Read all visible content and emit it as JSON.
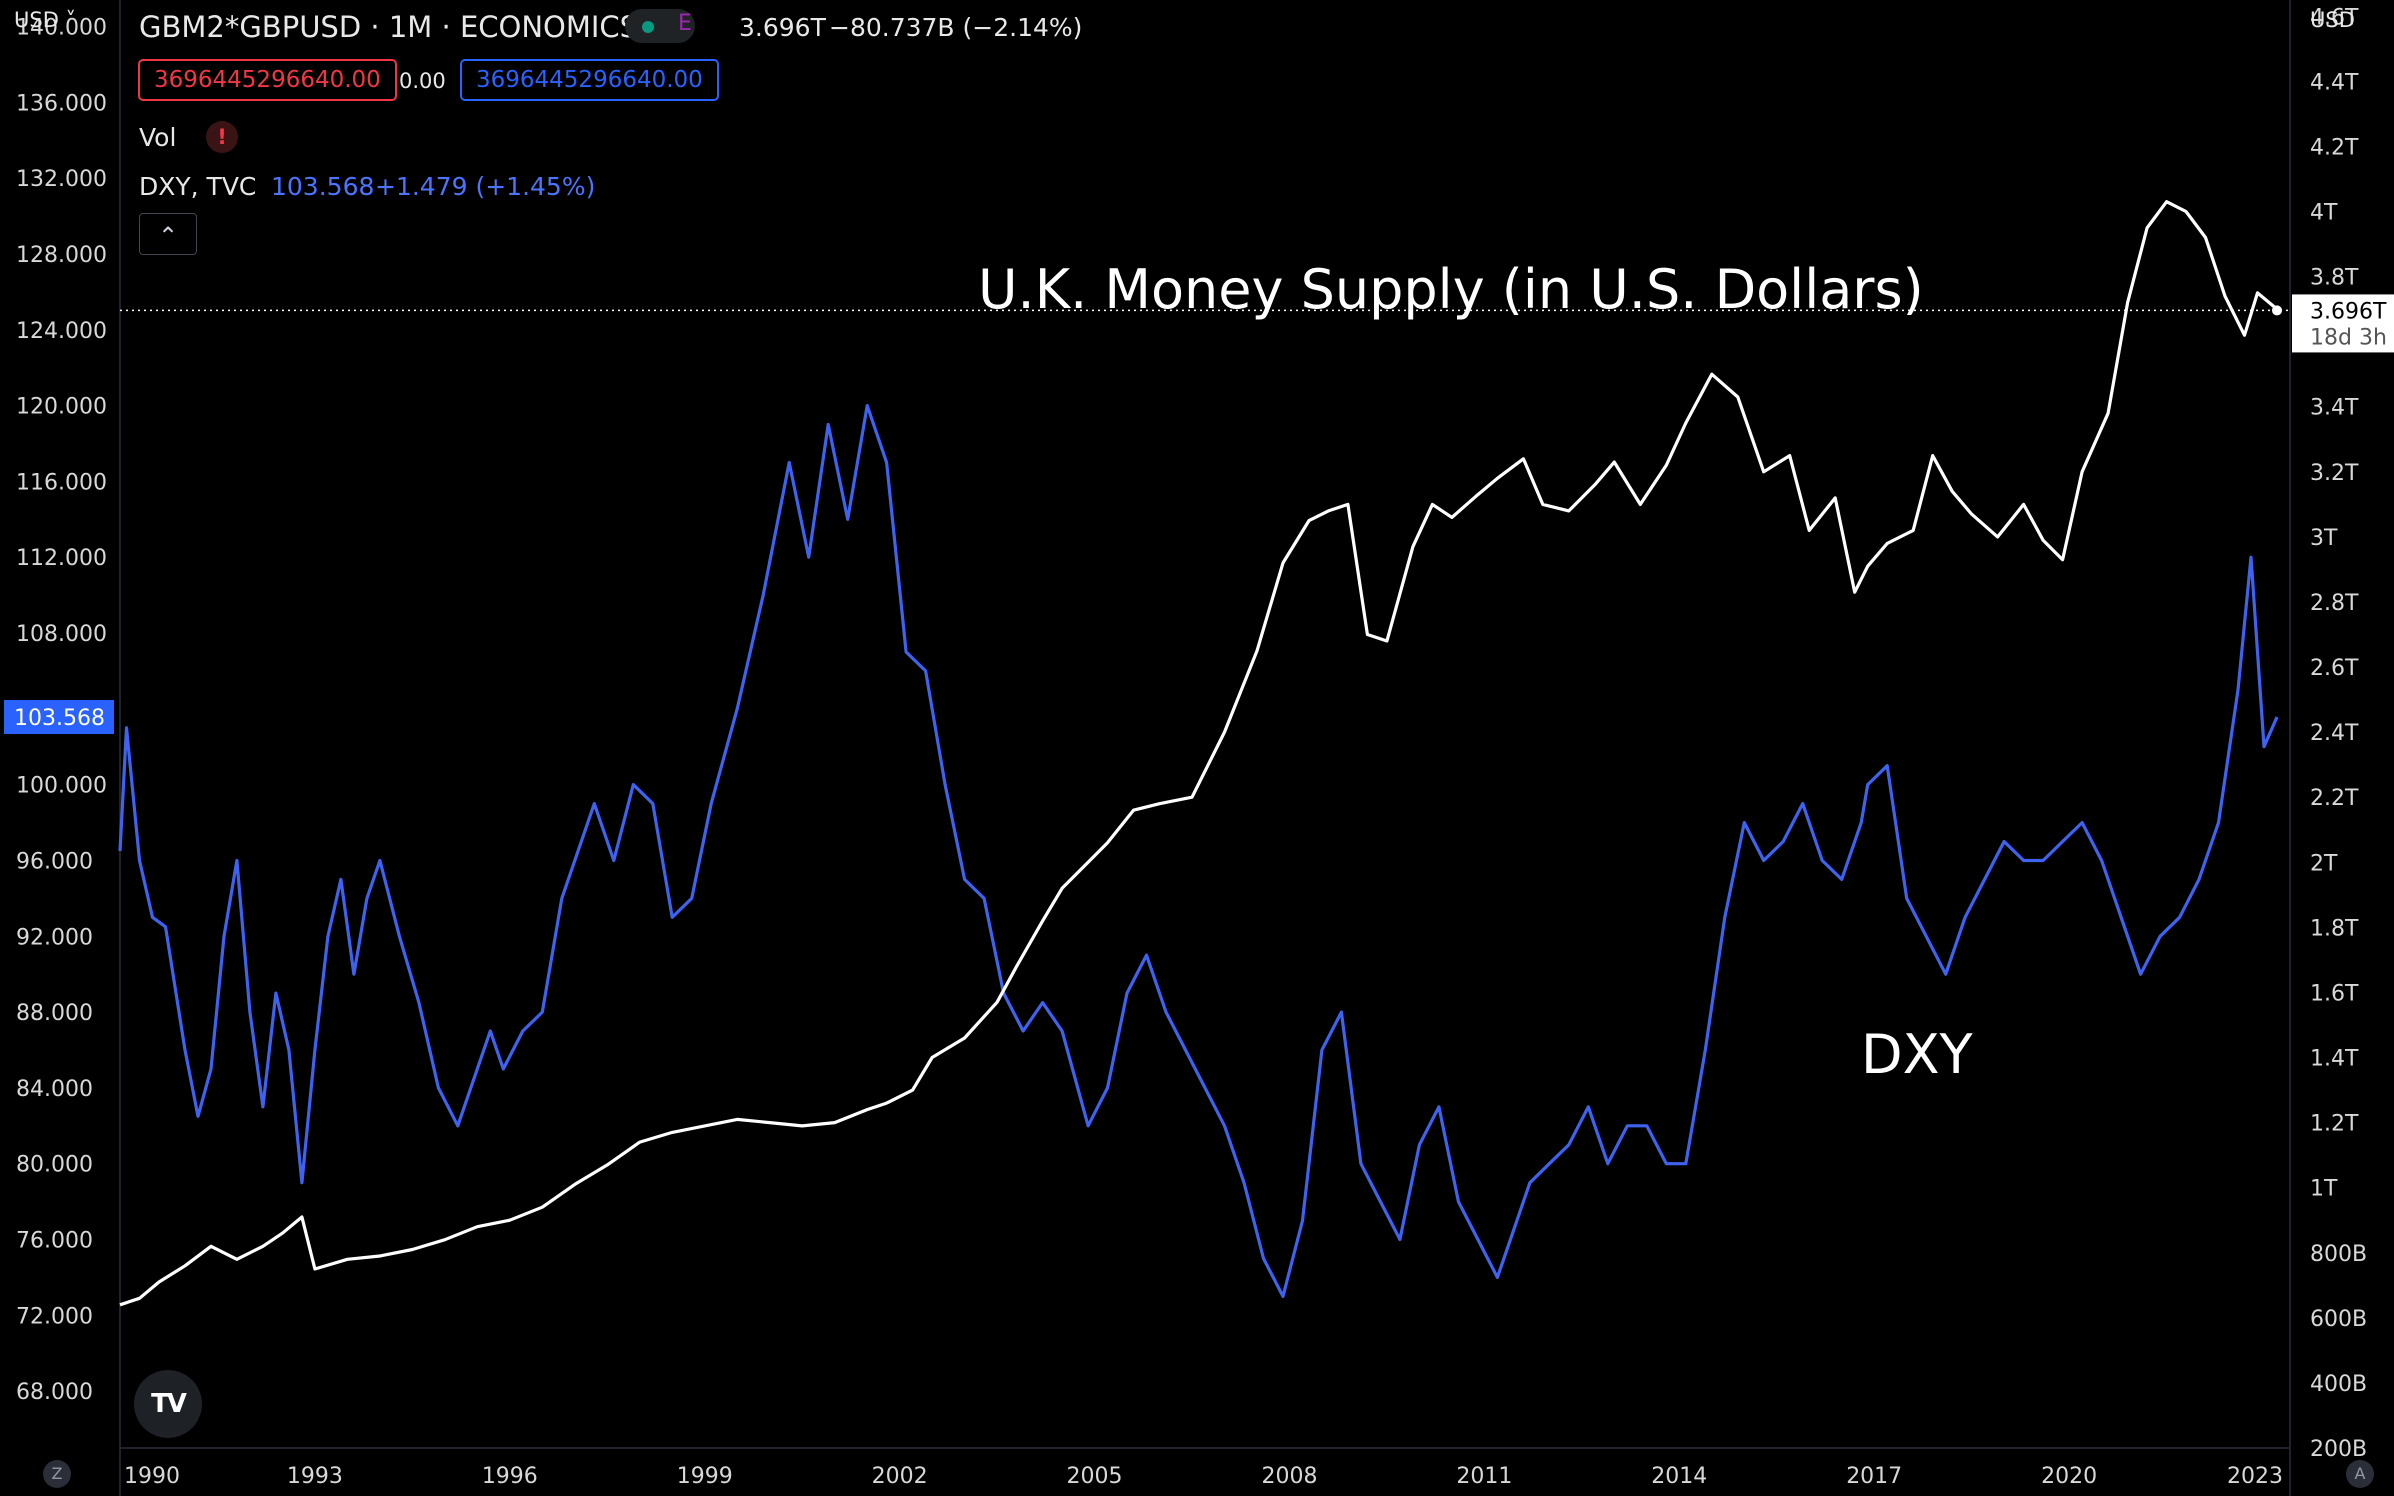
{
  "header": {
    "left_currency": "USD ˅",
    "symbol": "GBM2*GBPUSD · 1M · ECONOMICS",
    "status_e": "E",
    "last_value": "3.696T",
    "change": "−80.737B (−2.14%)",
    "input_left": "3696445296640.00",
    "input_mid": "0.00",
    "input_right": "3696445296640.00",
    "vol_label": "Vol",
    "vol_warning": "!",
    "dxy_label": "DXY, TVC",
    "dxy_value": "103.568",
    "dxy_change": "+1.479 (+1.45%)",
    "collapse_glyph": "⌃",
    "right_currency": "USD",
    "logo_text": "TV",
    "z_badge": "Z",
    "a_badge": "A"
  },
  "colors": {
    "background": "#000000",
    "m2_line": "#ffffff",
    "dxy_line": "#3d63f0",
    "up_red": "#f23645",
    "blue": "#2962ff"
  },
  "chart_data": {
    "type": "line",
    "annotations": [
      "U.K. Money Supply (in U.S. Dollars)",
      "DXY"
    ],
    "x_ticks": [
      "1990",
      "1993",
      "1996",
      "1999",
      "2002",
      "2005",
      "2008",
      "2011",
      "2014",
      "2017",
      "2020",
      "2023"
    ],
    "x_range": [
      1990.0,
      2023.4
    ],
    "left_axis": {
      "ticks": [
        "140.000",
        "136.000",
        "132.000",
        "128.000",
        "124.000",
        "120.000",
        "116.000",
        "112.000",
        "108.000",
        "104.000",
        "100.000",
        "96.000",
        "92.000",
        "88.000",
        "84.000",
        "80.000",
        "76.000",
        "72.000",
        "68.000"
      ],
      "tick_values": [
        140,
        136,
        132,
        128,
        124,
        120,
        116,
        112,
        108,
        104,
        100,
        96,
        92,
        88,
        84,
        80,
        76,
        72,
        68
      ],
      "range": [
        65.0,
        141.4
      ],
      "current_label": "103.568",
      "current_value": 103.568
    },
    "right_axis": {
      "ticks": [
        "4.6T",
        "4.4T",
        "4.2T",
        "4T",
        "3.8T",
        "3.6T",
        "3.4T",
        "3.2T",
        "3T",
        "2.8T",
        "2.6T",
        "2.4T",
        "2.2T",
        "2T",
        "1.8T",
        "1.6T",
        "1.4T",
        "1.2T",
        "1T",
        "800B",
        "600B",
        "400B",
        "200B"
      ],
      "tick_values": [
        4.6,
        4.4,
        4.2,
        4.0,
        3.8,
        3.6,
        3.4,
        3.2,
        3.0,
        2.8,
        2.6,
        2.4,
        2.2,
        2.0,
        1.8,
        1.6,
        1.4,
        1.2,
        1.0,
        0.8,
        0.6,
        0.4,
        0.2
      ],
      "range": [
        0.2,
        4.65
      ],
      "current_label": "3.696T",
      "countdown": "18d 3h",
      "current_value": 3.696
    },
    "series": [
      {
        "name": "UK M2 in USD (GBM2*GBPUSD)",
        "axis": "right",
        "x": [
          1990.0,
          1990.3,
          1990.6,
          1991.0,
          1991.4,
          1991.8,
          1992.2,
          1992.5,
          1992.8,
          1993.0,
          1993.5,
          1994.0,
          1994.5,
          1995.0,
          1995.5,
          1996.0,
          1996.5,
          1997.0,
          1997.5,
          1998.0,
          1998.5,
          1999.0,
          1999.5,
          2000.0,
          2000.5,
          2001.0,
          2001.5,
          2001.8,
          2002.2,
          2002.5,
          2003.0,
          2003.5,
          2003.8,
          2004.2,
          2004.5,
          2004.9,
          2005.2,
          2005.6,
          2006.0,
          2006.5,
          2007.0,
          2007.5,
          2007.9,
          2008.3,
          2008.6,
          2008.9,
          2009.2,
          2009.5,
          2009.9,
          2010.2,
          2010.5,
          2010.9,
          2011.2,
          2011.6,
          2011.9,
          2012.3,
          2012.7,
          2013.0,
          2013.4,
          2013.8,
          2014.1,
          2014.5,
          2014.9,
          2015.3,
          2015.7,
          2016.0,
          2016.4,
          2016.7,
          2016.9,
          2017.2,
          2017.6,
          2017.9,
          2018.2,
          2018.5,
          2018.9,
          2019.3,
          2019.6,
          2019.9,
          2020.2,
          2020.6,
          2020.9,
          2021.2,
          2021.5,
          2021.8,
          2022.1,
          2022.4,
          2022.7,
          2022.9,
          2023.2
        ],
        "values": [
          0.64,
          0.66,
          0.71,
          0.76,
          0.82,
          0.78,
          0.82,
          0.86,
          0.91,
          0.75,
          0.78,
          0.79,
          0.81,
          0.84,
          0.88,
          0.9,
          0.94,
          1.01,
          1.07,
          1.14,
          1.17,
          1.19,
          1.21,
          1.2,
          1.19,
          1.2,
          1.24,
          1.26,
          1.3,
          1.4,
          1.46,
          1.57,
          1.68,
          1.82,
          1.92,
          2.0,
          2.06,
          2.16,
          2.18,
          2.2,
          2.4,
          2.65,
          2.92,
          3.05,
          3.08,
          3.1,
          2.7,
          2.68,
          2.97,
          3.1,
          3.06,
          3.13,
          3.18,
          3.24,
          3.1,
          3.08,
          3.16,
          3.23,
          3.1,
          3.22,
          3.35,
          3.5,
          3.43,
          3.2,
          3.25,
          3.02,
          3.12,
          2.83,
          2.91,
          2.98,
          3.02,
          3.25,
          3.14,
          3.07,
          3.0,
          3.1,
          2.99,
          2.93,
          3.2,
          3.38,
          3.72,
          3.95,
          4.03,
          4.0,
          3.92,
          3.74,
          3.62,
          3.75,
          3.7
        ]
      },
      {
        "name": "DXY, TVC",
        "axis": "left",
        "x": [
          1990.0,
          1990.1,
          1990.3,
          1990.5,
          1990.7,
          1991.0,
          1991.2,
          1991.4,
          1991.6,
          1991.8,
          1992.0,
          1992.2,
          1992.4,
          1992.6,
          1992.8,
          1993.0,
          1993.2,
          1993.4,
          1993.6,
          1993.8,
          1994.0,
          1994.3,
          1994.6,
          1994.9,
          1995.2,
          1995.4,
          1995.7,
          1995.9,
          1996.2,
          1996.5,
          1996.8,
          1997.0,
          1997.3,
          1997.6,
          1997.9,
          1998.2,
          1998.5,
          1998.8,
          1999.1,
          1999.5,
          1999.9,
          2000.3,
          2000.6,
          2000.9,
          2001.2,
          2001.5,
          2001.8,
          2002.1,
          2002.4,
          2002.7,
          2003.0,
          2003.3,
          2003.6,
          2003.9,
          2004.2,
          2004.5,
          2004.9,
          2005.2,
          2005.5,
          2005.8,
          2006.1,
          2006.4,
          2006.7,
          2007.0,
          2007.3,
          2007.6,
          2007.9,
          2008.2,
          2008.5,
          2008.8,
          2009.1,
          2009.4,
          2009.7,
          2010.0,
          2010.3,
          2010.6,
          2010.9,
          2011.2,
          2011.5,
          2011.7,
          2012.0,
          2012.3,
          2012.6,
          2012.9,
          2013.2,
          2013.5,
          2013.8,
          2014.1,
          2014.4,
          2014.7,
          2015.0,
          2015.3,
          2015.6,
          2015.9,
          2016.2,
          2016.5,
          2016.8,
          2016.9,
          2017.2,
          2017.5,
          2017.8,
          2018.1,
          2018.4,
          2018.7,
          2019.0,
          2019.3,
          2019.6,
          2019.9,
          2020.2,
          2020.5,
          2020.8,
          2021.1,
          2021.4,
          2021.7,
          2022.0,
          2022.3,
          2022.6,
          2022.8,
          2023.0,
          2023.2
        ],
        "values": [
          96.5,
          103.0,
          96.0,
          93.0,
          92.5,
          86.0,
          82.5,
          85.0,
          92.0,
          96.0,
          88.0,
          83.0,
          89.0,
          86.0,
          79.0,
          86.0,
          92.0,
          95.0,
          90.0,
          94.0,
          96.0,
          92.0,
          88.5,
          84.0,
          82.0,
          84.0,
          87.0,
          85.0,
          87.0,
          88.0,
          94.0,
          96.0,
          99.0,
          96.0,
          100.0,
          99.0,
          93.0,
          94.0,
          99.0,
          104.0,
          110.0,
          117.0,
          112.0,
          119.0,
          114.0,
          120.0,
          117.0,
          107.0,
          106.0,
          100.0,
          95.0,
          94.0,
          89.0,
          87.0,
          88.5,
          87.0,
          82.0,
          84.0,
          89.0,
          91.0,
          88.0,
          86.0,
          84.0,
          82.0,
          79.0,
          75.0,
          73.0,
          77.0,
          86.0,
          88.0,
          80.0,
          78.0,
          76.0,
          81.0,
          83.0,
          78.0,
          76.0,
          74.0,
          77.0,
          79.0,
          80.0,
          81.0,
          83.0,
          80.0,
          82.0,
          82.0,
          80.0,
          80.0,
          86.0,
          93.0,
          98.0,
          96.0,
          97.0,
          99.0,
          96.0,
          95.0,
          98.0,
          100.0,
          101.0,
          94.0,
          92.0,
          90.0,
          93.0,
          95.0,
          97.0,
          96.0,
          96.0,
          97.0,
          98.0,
          96.0,
          93.0,
          90.0,
          92.0,
          93.0,
          95.0,
          98.0,
          105.0,
          112.0,
          102.0,
          103.568
        ]
      }
    ]
  }
}
